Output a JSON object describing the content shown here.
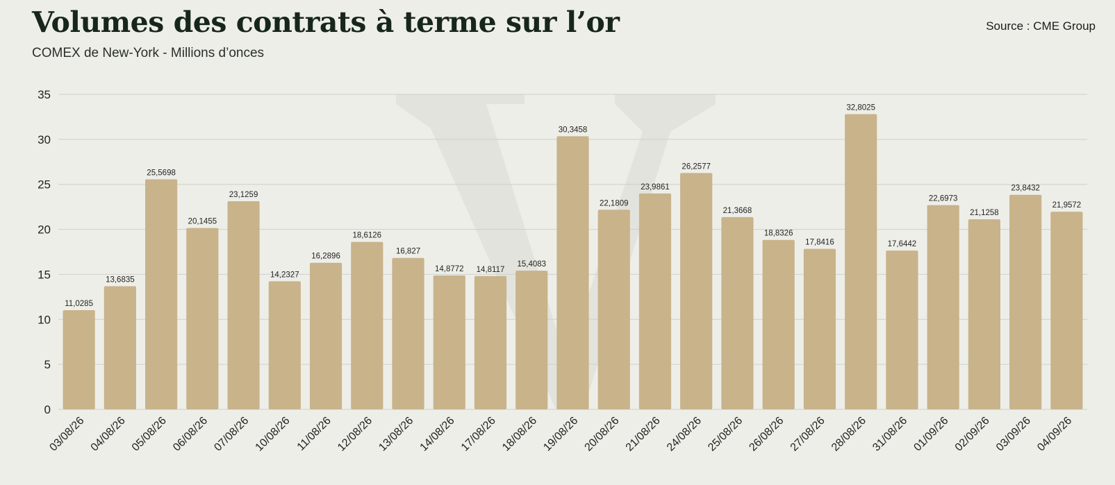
{
  "header": {
    "title": "Volumes des contrats à terme sur l’or",
    "subtitle": "COMEX de New-York - Millions d’onces",
    "source": "Source : CME Group"
  },
  "colors": {
    "bar": "#c8b38b",
    "grid": "#cfd0cb",
    "axis_text": "#222222",
    "watermark": "#e3e3dd"
  },
  "chart_data": {
    "type": "bar",
    "title": "Volumes des contrats à terme sur l’or",
    "subtitle": "COMEX de New-York - Millions d’onces",
    "xlabel": "",
    "ylabel": "",
    "ylim": [
      0,
      35
    ],
    "yticks": [
      0,
      5,
      10,
      15,
      20,
      25,
      30,
      35
    ],
    "grid": true,
    "categories": [
      "03/08/26",
      "04/08/26",
      "05/08/26",
      "06/08/26",
      "07/08/26",
      "10/08/26",
      "11/08/26",
      "12/08/26",
      "13/08/26",
      "14/08/26",
      "17/08/26",
      "18/08/26",
      "19/08/26",
      "20/08/26",
      "21/08/26",
      "24/08/26",
      "25/08/26",
      "26/08/26",
      "27/08/26",
      "28/08/26",
      "31/08/26",
      "01/09/26",
      "02/09/26",
      "03/09/26",
      "04/09/26"
    ],
    "values": [
      11.0285,
      13.6835,
      25.5698,
      20.1455,
      23.1259,
      14.2327,
      16.2896,
      18.6126,
      16.827,
      14.8772,
      14.8117,
      15.4083,
      30.3458,
      22.1809,
      23.9861,
      26.2577,
      21.3668,
      18.8326,
      17.8416,
      32.8025,
      17.6442,
      22.6973,
      21.1258,
      23.8432,
      21.9572
    ],
    "value_labels": [
      "11,0285",
      "13,6835",
      "25,5698",
      "20,1455",
      "23,1259",
      "14,2327",
      "16,2896",
      "18,6126",
      "16,827",
      "14,8772",
      "14,8117",
      "15,4083",
      "30,3458",
      "22,1809",
      "23,9861",
      "26,2577",
      "21,3668",
      "18,8326",
      "17,8416",
      "32,8025",
      "17,6442",
      "22,6973",
      "21,1258",
      "23,8432",
      "21,9572"
    ]
  }
}
